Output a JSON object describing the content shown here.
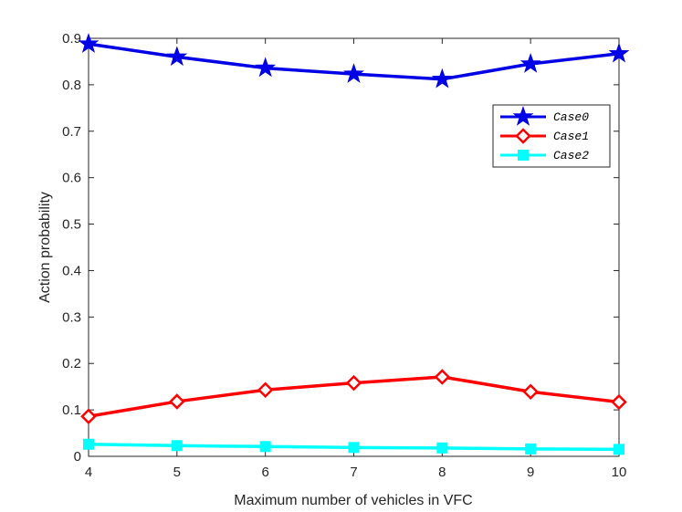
{
  "chart_data": {
    "type": "line",
    "title": "",
    "xlabel": "Maximum number of vehicles in VFC",
    "ylabel": "Action probability",
    "x": [
      4,
      5,
      6,
      7,
      8,
      9,
      10
    ],
    "xlim": [
      4,
      10
    ],
    "ylim": [
      0,
      0.9
    ],
    "xticks": [
      "4",
      "5",
      "6",
      "7",
      "8",
      "9",
      "10"
    ],
    "yticks": [
      "0",
      "0.1",
      "0.2",
      "0.3",
      "0.4",
      "0.5",
      "0.6",
      "0.7",
      "0.8",
      "0.9"
    ],
    "grid": false,
    "legend_position": "top-right",
    "series": [
      {
        "name": "Case0",
        "marker": "star",
        "color": "#0000e6",
        "values": [
          0.888,
          0.86,
          0.836,
          0.823,
          0.812,
          0.845,
          0.867
        ]
      },
      {
        "name": "Case1",
        "marker": "diamond",
        "color": "#ff0000",
        "values": [
          0.086,
          0.118,
          0.143,
          0.158,
          0.171,
          0.139,
          0.117
        ]
      },
      {
        "name": "Case2",
        "marker": "square",
        "color": "#00ffff",
        "values": [
          0.026,
          0.023,
          0.021,
          0.019,
          0.018,
          0.016,
          0.015
        ]
      }
    ]
  }
}
